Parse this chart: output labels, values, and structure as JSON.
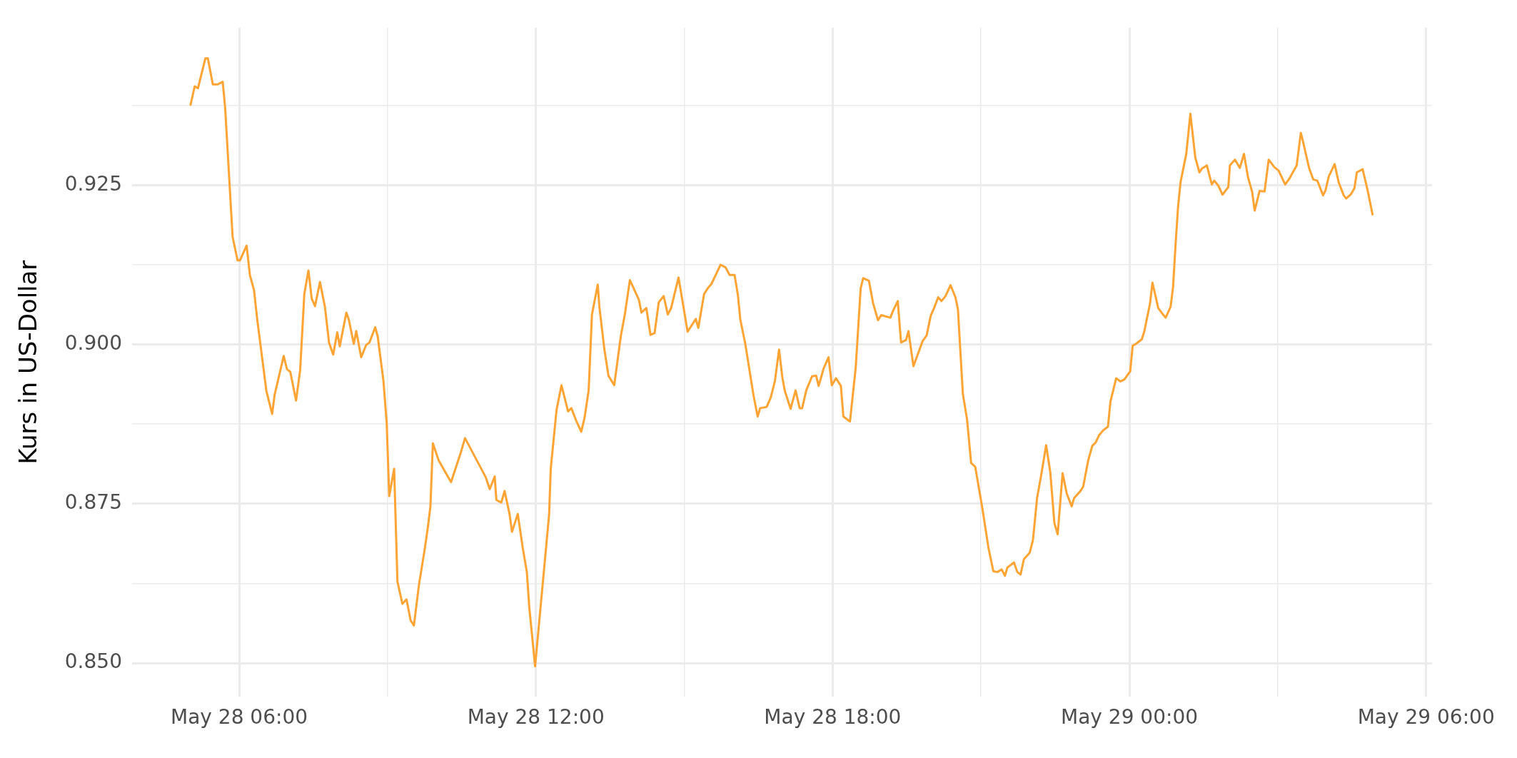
{
  "chart_data": {
    "type": "line",
    "ylabel": "Kurs in US-Dollar",
    "grid": true,
    "legend": false,
    "marker": "none",
    "line_style": "solid",
    "xlim": [
      "--05-28T03:50",
      "--05-29T06:07"
    ],
    "ylim": [
      0.8447,
      0.9497
    ],
    "xticks": [
      {
        "value": "--05-28T06:00",
        "label": "May 28 06:00"
      },
      {
        "value": "--05-28T09:00",
        "label": null
      },
      {
        "value": "--05-28T12:00",
        "label": "May 28 12:00"
      },
      {
        "value": "--05-28T15:00",
        "label": null
      },
      {
        "value": "--05-28T18:00",
        "label": "May 28 18:00"
      },
      {
        "value": "--05-28T21:00",
        "label": null
      },
      {
        "value": "--05-29T00:00",
        "label": "May 29 00:00"
      },
      {
        "value": "--05-29T03:00",
        "label": null
      },
      {
        "value": "--05-29T06:00",
        "label": "May 29 06:00"
      }
    ],
    "yticks": [
      {
        "value": 0.85,
        "label": "0.850"
      },
      {
        "value": 0.8625,
        "label": null
      },
      {
        "value": 0.875,
        "label": "0.875"
      },
      {
        "value": 0.8875,
        "label": null
      },
      {
        "value": 0.9,
        "label": "0.900"
      },
      {
        "value": 0.9125,
        "label": null
      },
      {
        "value": 0.925,
        "label": "0.925"
      },
      {
        "value": 0.9375,
        "label": null
      }
    ],
    "series": [
      {
        "color": "#ffa333",
        "x": [
          "--05-28T05:01",
          "--05-28T05:06",
          "--05-28T05:10",
          "--05-28T05:19",
          "--05-28T05:22",
          "--05-28T05:28",
          "--05-28T05:34",
          "--05-28T05:40",
          "--05-28T05:43",
          "--05-28T05:52",
          "--05-28T05:58",
          "--05-28T06:01",
          "--05-28T06:09",
          "--05-28T06:13",
          "--05-28T06:18",
          "--05-28T06:22",
          "--05-28T06:33",
          "--05-28T06:40",
          "--05-28T06:43",
          "--05-28T06:54",
          "--05-28T06:58",
          "--05-28T07:02",
          "--05-28T07:09",
          "--05-28T07:14",
          "--05-28T07:19",
          "--05-28T07:24",
          "--05-28T07:28",
          "--05-28T07:32",
          "--05-28T07:38",
          "--05-28T07:44",
          "--05-28T07:49",
          "--05-28T07:54",
          "--05-28T07:59",
          "--05-28T08:02",
          "--05-28T08:10",
          "--05-28T08:13",
          "--05-28T08:19",
          "--05-28T08:22",
          "--05-28T08:28",
          "--05-28T08:34",
          "--05-28T08:38",
          "--05-28T08:45",
          "--05-28T08:48",
          "--05-28T08:55",
          "--05-28T08:59",
          "--05-28T09:02",
          "--05-28T09:08",
          "--05-28T09:12",
          "--05-28T09:18",
          "--05-28T09:23",
          "--05-28T09:28",
          "--05-28T09:32",
          "--05-28T09:38",
          "--05-28T09:45",
          "--05-28T09:49",
          "--05-28T09:52",
          "--05-28T09:55",
          "--05-28T10:02",
          "--05-28T10:17",
          "--05-28T10:29",
          "--05-28T10:34",
          "--05-28T10:59",
          "--05-28T11:04",
          "--05-28T11:10",
          "--05-28T11:12",
          "--05-28T11:18",
          "--05-28T11:22",
          "--05-28T11:28",
          "--05-28T11:31",
          "--05-28T11:38",
          "--05-28T11:44",
          "--05-28T11:49",
          "--05-28T11:52",
          "--05-28T11:59",
          "--05-28T12:03",
          "--05-28T12:16",
          "--05-28T12:18",
          "--05-28T12:25",
          "--05-28T12:31",
          "--05-28T12:39",
          "--05-28T12:43",
          "--05-28T12:49",
          "--05-28T12:55",
          "--05-28T12:59",
          "--05-28T13:04",
          "--05-28T13:08",
          "--05-28T13:15",
          "--05-28T13:17",
          "--05-28T13:23",
          "--05-28T13:28",
          "--05-28T13:35",
          "--05-28T13:43",
          "--05-28T13:48",
          "--05-28T13:54",
          "--05-28T14:05",
          "--05-28T14:08",
          "--05-28T14:14",
          "--05-28T14:19",
          "--05-28T14:24",
          "--05-28T14:29",
          "--05-28T14:35",
          "--05-28T14:40",
          "--05-28T14:44",
          "--05-28T14:53",
          "--05-28T14:59",
          "--05-28T15:04",
          "--05-28T15:14",
          "--05-28T15:17",
          "--05-28T15:24",
          "--05-28T15:29",
          "--05-28T15:33",
          "--05-28T15:44",
          "--05-28T15:50",
          "--05-28T15:55",
          "--05-28T16:01",
          "--05-28T16:05",
          "--05-28T16:08",
          "--05-28T16:14",
          "--05-28T16:24",
          "--05-28T16:29",
          "--05-28T16:32",
          "--05-28T16:40",
          "--05-28T16:45",
          "--05-28T16:50",
          "--05-28T16:55",
          "--05-28T16:59",
          "--05-28T17:02",
          "--05-28T17:09",
          "--05-28T17:15",
          "--05-28T17:20",
          "--05-28T17:23",
          "--05-28T17:28",
          "--05-28T17:35",
          "--05-28T17:40",
          "--05-28T17:43",
          "--05-28T17:49",
          "--05-28T17:55",
          "--05-28T17:59",
          "--05-28T18:04",
          "--05-28T18:10",
          "--05-28T18:13",
          "--05-28T18:21",
          "--05-28T18:24",
          "--05-28T18:28",
          "--05-28T18:34",
          "--05-28T18:37",
          "--05-28T18:44",
          "--05-28T18:49",
          "--05-28T18:55",
          "--05-28T18:59",
          "--05-28T19:10",
          "--05-28T19:13",
          "--05-28T19:19",
          "--05-28T19:23",
          "--05-28T19:29",
          "--05-28T19:32",
          "--05-28T19:38",
          "--05-28T19:44",
          "--05-28T19:49",
          "--05-28T19:54",
          "--05-28T19:59",
          "--05-28T20:03",
          "--05-28T20:08",
          "--05-28T20:12",
          "--05-28T20:17",
          "--05-28T20:23",
          "--05-28T20:29",
          "--05-28T20:32",
          "--05-28T20:38",
          "--05-28T20:43",
          "--05-28T20:48",
          "--05-28T20:53",
          "--05-28T21:02",
          "--05-28T21:09",
          "--05-28T21:15",
          "--05-28T21:20",
          "--05-28T21:25",
          "--05-28T21:29",
          "--05-28T21:32",
          "--05-28T21:40",
          "--05-28T21:44",
          "--05-28T21:48",
          "--05-28T21:52",
          "--05-28T21:59",
          "--05-28T22:03",
          "--05-28T22:08",
          "--05-28T22:13",
          "--05-28T22:19",
          "--05-28T22:24",
          "--05-28T22:29",
          "--05-28T22:33",
          "--05-28T22:39",
          "--05-28T22:44",
          "--05-28T22:50",
          "--05-28T22:53",
          "--05-28T23:00",
          "--05-28T23:04",
          "--05-28T23:10",
          "--05-28T23:15",
          "--05-28T23:19",
          "--05-28T23:23",
          "--05-28T23:28",
          "--05-28T23:34",
          "--05-28T23:37",
          "--05-28T23:44",
          "--05-28T23:49",
          "--05-28T23:54",
          "--05-29T00:01",
          "--05-29T00:04",
          "--05-29T00:08",
          "--05-29T00:15",
          "--05-29T00:18",
          "--05-29T00:25",
          "--05-29T00:28",
          "--05-29T00:35",
          "--05-29T00:39",
          "--05-29T00:44",
          "--05-29T00:50",
          "--05-29T00:53",
          "--05-29T00:56",
          "--05-29T00:59",
          "--05-29T01:02",
          "--05-29T01:09",
          "--05-29T01:14",
          "--05-29T01:20",
          "--05-29T01:25",
          "--05-29T01:28",
          "--05-29T01:34",
          "--05-29T01:40",
          "--05-29T01:43",
          "--05-29T01:48",
          "--05-29T01:53",
          "--05-29T02:00",
          "--05-29T02:02",
          "--05-29T02:08",
          "--05-29T02:14",
          "--05-29T02:19",
          "--05-29T02:24",
          "--05-29T02:29",
          "--05-29T02:32",
          "--05-29T02:38",
          "--05-29T02:44",
          "--05-29T02:49",
          "--05-29T02:56",
          "--05-29T03:01",
          "--05-29T03:09",
          "--05-29T03:14",
          "--05-29T03:23",
          "--05-29T03:28",
          "--05-29T03:30",
          "--05-29T03:38",
          "--05-29T03:43",
          "--05-29T03:48",
          "--05-29T03:55",
          "--05-29T03:58",
          "--05-29T04:02",
          "--05-29T04:09",
          "--05-29T04:14",
          "--05-29T04:20",
          "--05-29T04:23",
          "--05-29T04:29",
          "--05-29T04:33",
          "--05-29T04:36",
          "--05-29T04:43",
          "--05-29T04:49",
          "--05-29T04:55"
        ],
        "values": [
          0.9376,
          0.9405,
          0.9402,
          0.9449,
          0.9449,
          0.9408,
          0.9408,
          0.9412,
          0.9371,
          0.9169,
          0.9132,
          0.9132,
          0.9155,
          0.9109,
          0.9085,
          0.9038,
          0.8927,
          0.8891,
          0.8921,
          0.8982,
          0.8961,
          0.8957,
          0.8912,
          0.896,
          0.9079,
          0.9116,
          0.9072,
          0.906,
          0.9098,
          0.9059,
          0.9003,
          0.8984,
          0.9019,
          0.8997,
          0.905,
          0.9039,
          0.9001,
          0.9021,
          0.898,
          0.8999,
          0.9003,
          0.9027,
          0.9013,
          0.8943,
          0.8876,
          0.8762,
          0.8805,
          0.8628,
          0.8593,
          0.86,
          0.8567,
          0.8559,
          0.8622,
          0.8678,
          0.8714,
          0.8746,
          0.8845,
          0.8818,
          0.8784,
          0.8831,
          0.8853,
          0.8792,
          0.8773,
          0.8793,
          0.8756,
          0.8752,
          0.877,
          0.8734,
          0.8706,
          0.8734,
          0.8681,
          0.8643,
          0.8587,
          0.8495,
          0.8551,
          0.8733,
          0.8805,
          0.8897,
          0.8936,
          0.8895,
          0.89,
          0.888,
          0.8863,
          0.8885,
          0.8928,
          0.9047,
          0.9094,
          0.9059,
          0.8993,
          0.8951,
          0.8936,
          0.9013,
          0.9048,
          0.9101,
          0.907,
          0.905,
          0.9057,
          0.9015,
          0.9018,
          0.9066,
          0.9076,
          0.9047,
          0.9057,
          0.9105,
          0.9059,
          0.902,
          0.904,
          0.9026,
          0.9079,
          0.9089,
          0.9095,
          0.9125,
          0.9121,
          0.9109,
          0.9109,
          0.9078,
          0.9039,
          0.9001,
          0.892,
          0.8887,
          0.89,
          0.8902,
          0.8917,
          0.8943,
          0.8992,
          0.8948,
          0.8927,
          0.8899,
          0.8928,
          0.89,
          0.89,
          0.8928,
          0.895,
          0.8951,
          0.8935,
          0.8962,
          0.898,
          0.8936,
          0.8947,
          0.8935,
          0.8887,
          0.8879,
          0.8915,
          0.8964,
          0.9088,
          0.9104,
          0.91,
          0.9065,
          0.9038,
          0.9046,
          0.9042,
          0.9052,
          0.9068,
          0.9003,
          0.9007,
          0.9021,
          0.8966,
          0.8987,
          0.9005,
          0.9014,
          0.9045,
          0.9057,
          0.9074,
          0.9068,
          0.9076,
          0.9093,
          0.9074,
          0.9055,
          0.8922,
          0.8883,
          0.8814,
          0.8808,
          0.874,
          0.8681,
          0.8644,
          0.8643,
          0.8647,
          0.8637,
          0.865,
          0.8658,
          0.8643,
          0.8639,
          0.8663,
          0.8673,
          0.8693,
          0.8759,
          0.8795,
          0.8842,
          0.88,
          0.872,
          0.8702,
          0.8798,
          0.8766,
          0.8746,
          0.8759,
          0.8769,
          0.8777,
          0.8818,
          0.8841,
          0.8846,
          0.8857,
          0.8865,
          0.8871,
          0.891,
          0.8947,
          0.8942,
          0.8945,
          0.8958,
          0.8998,
          0.9001,
          0.9008,
          0.902,
          0.9064,
          0.9097,
          0.9057,
          0.905,
          0.9042,
          0.9059,
          0.909,
          0.9156,
          0.9215,
          0.9254,
          0.9299,
          0.9362,
          0.9293,
          0.927,
          0.9276,
          0.9281,
          0.9251,
          0.9257,
          0.9249,
          0.9235,
          0.9247,
          0.9281,
          0.929,
          0.9277,
          0.9299,
          0.9262,
          0.9239,
          0.921,
          0.9241,
          0.924,
          0.929,
          0.9278,
          0.9273,
          0.9251,
          0.926,
          0.9281,
          0.9332,
          0.9322,
          0.9277,
          0.9259,
          0.9257,
          0.9234,
          0.9242,
          0.9264,
          0.9283,
          0.9254,
          0.9234,
          0.9229,
          0.9236,
          0.9245,
          0.927,
          0.9275,
          0.9242,
          0.9204
        ]
      }
    ]
  }
}
